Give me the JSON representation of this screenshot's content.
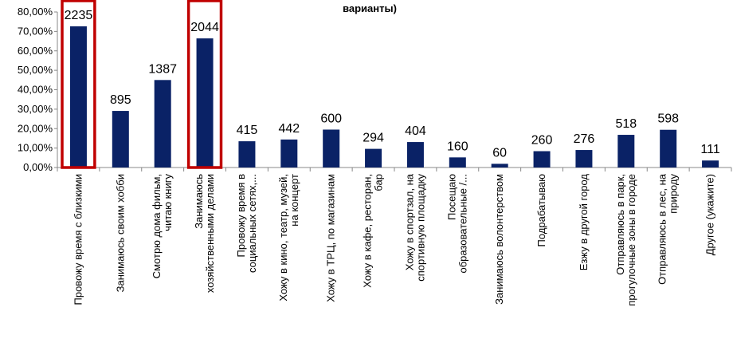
{
  "chart_data": {
    "type": "bar",
    "title": "варианты)",
    "categories": [
      [
        "Провожу время с близкими"
      ],
      [
        "Занимаюсь своим хобби"
      ],
      [
        "Смотрю дома фильм,",
        "читаю книгу"
      ],
      [
        "Занимаюсь",
        "хозяйственными делами"
      ],
      [
        "Провожу время в",
        "социальных сетях,..."
      ],
      [
        "Хожу в кино, театр, музей,",
        "на концерт"
      ],
      [
        "Хожу в ТРЦ, по магазинам"
      ],
      [
        "Хожу в кафе, ресторан,",
        "бар"
      ],
      [
        "Хожу в спортзал, на",
        "спортивную площадку"
      ],
      [
        "Посещаю",
        "образовательные /..."
      ],
      [
        "Занимаюсь волонтерством"
      ],
      [
        "Подрабатываю"
      ],
      [
        "Езжу в другой город"
      ],
      [
        "Отправляюсь в парк,",
        "прогулочные зоны в городе"
      ],
      [
        "Отправляюсь в лес, на",
        "природу"
      ],
      [
        "Другое (укажите)"
      ]
    ],
    "values": [
      72.6,
      29.1,
      45.0,
      66.4,
      13.5,
      14.4,
      19.5,
      9.6,
      13.1,
      5.2,
      1.9,
      8.4,
      9.0,
      16.8,
      19.4,
      3.6
    ],
    "counts": [
      "2235",
      "895",
      "1387",
      "2044",
      "415",
      "442",
      "600",
      "294",
      "404",
      "160",
      "60",
      "260",
      "276",
      "518",
      "598",
      "111"
    ],
    "highlighted": [
      0,
      3
    ],
    "ylim": [
      0,
      80
    ],
    "yticks": [
      "0,00%",
      "10,00%",
      "20,00%",
      "30,00%",
      "40,00%",
      "50,00%",
      "60,00%",
      "70,00%",
      "80,00%"
    ],
    "grid": false,
    "colors": {
      "bar": "#0a2266",
      "highlight": "#c00000",
      "axis": "#888888"
    }
  }
}
